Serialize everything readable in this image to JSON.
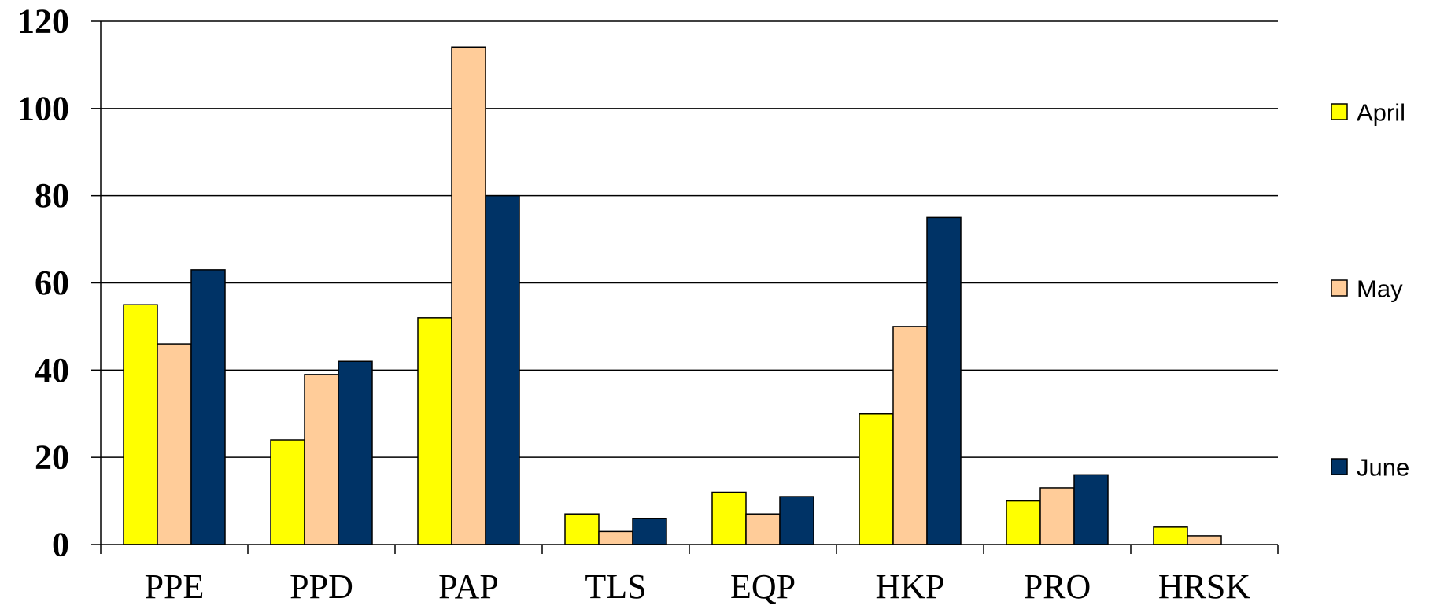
{
  "chart_data": {
    "type": "bar",
    "categories": [
      "PPE",
      "PPD",
      "PAP",
      "TLS",
      "EQP",
      "HKP",
      "PRO",
      "HRSK"
    ],
    "series": [
      {
        "name": "April",
        "color": "#FFFF00",
        "values": [
          55,
          24,
          52,
          7,
          12,
          30,
          10,
          4
        ]
      },
      {
        "name": "May",
        "color": "#FFCC99",
        "values": [
          46,
          39,
          114,
          3,
          7,
          50,
          13,
          2
        ]
      },
      {
        "name": "June",
        "color": "#003366",
        "values": [
          63,
          42,
          80,
          6,
          11,
          75,
          16,
          0
        ]
      }
    ],
    "title": "",
    "xlabel": "",
    "ylabel": "",
    "ylim": [
      0,
      120
    ],
    "yticks": [
      0,
      20,
      40,
      60,
      80,
      100,
      120
    ],
    "grid": true,
    "legend_position": "right"
  }
}
